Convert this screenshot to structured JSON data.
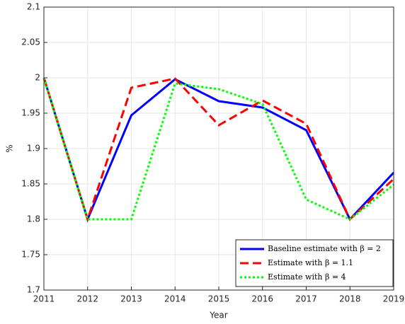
{
  "chart_data": {
    "type": "line",
    "x_label": "Year",
    "y_label": "%",
    "x": [
      2011,
      2012,
      2013,
      2014,
      2015,
      2016,
      2017,
      2018,
      2019
    ],
    "xlim": [
      2011,
      2019
    ],
    "xticks": [
      2011,
      2012,
      2013,
      2014,
      2015,
      2016,
      2017,
      2018,
      2019
    ],
    "ylim": [
      1.7,
      2.1
    ],
    "yticks": [
      1.7,
      1.75,
      1.8,
      1.85,
      1.9,
      1.95,
      2,
      2.05,
      2.1
    ],
    "grid": true,
    "legend_position": "lower-right",
    "series": [
      {
        "name": "Baseline estimate with β = 2",
        "color": "#0000ff",
        "style": "solid",
        "values": [
          2.0,
          1.8,
          1.947,
          1.998,
          1.967,
          1.958,
          1.926,
          1.8,
          1.866
        ]
      },
      {
        "name": "Estimate with β = 1.1",
        "color": "#ff0000",
        "style": "dashed",
        "values": [
          2.0,
          1.8,
          1.986,
          1.999,
          1.933,
          1.968,
          1.935,
          1.8,
          1.857
        ]
      },
      {
        "name": "Estimate with β = 4",
        "color": "#00ff00",
        "style": "dotted",
        "values": [
          2.0,
          1.8,
          1.8,
          1.992,
          1.984,
          1.963,
          1.828,
          1.8,
          1.849
        ]
      }
    ]
  }
}
